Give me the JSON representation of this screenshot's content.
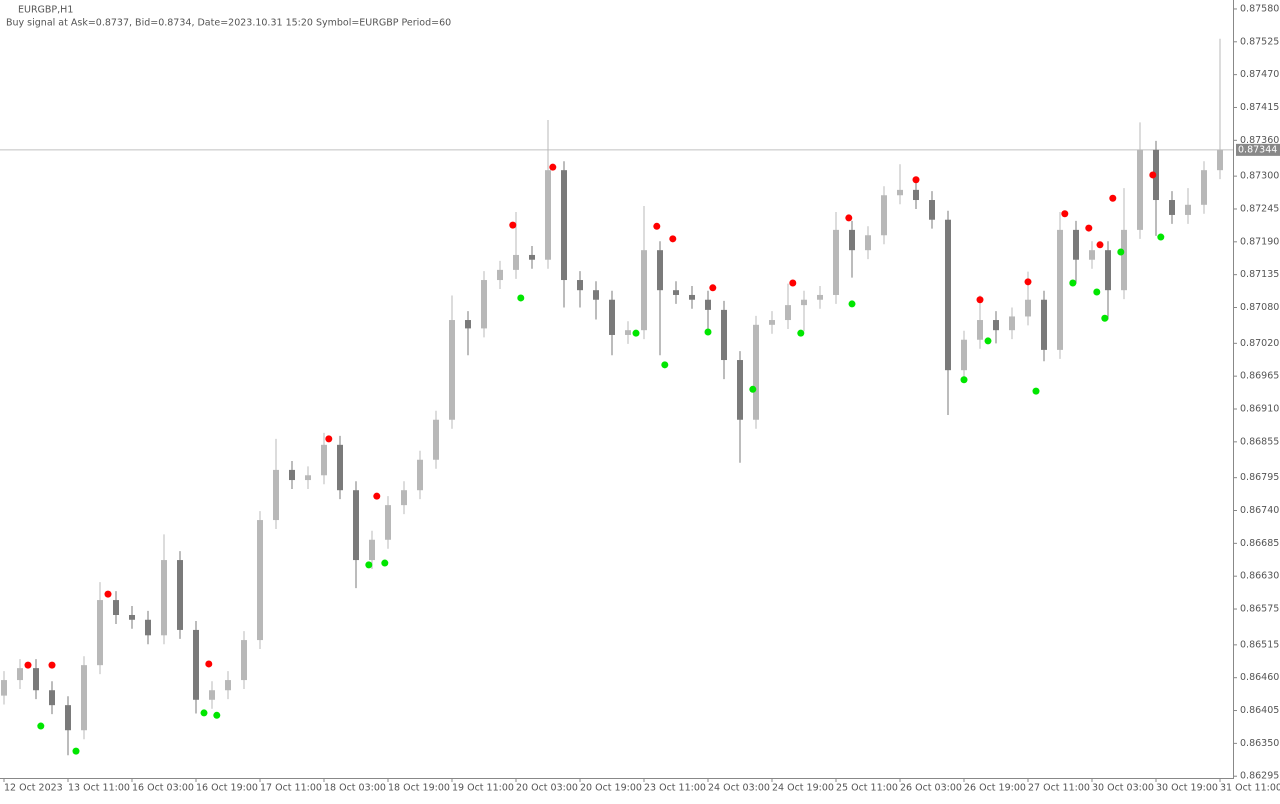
{
  "chart_data": {
    "type": "candlestick",
    "title": "EURGBP,H1",
    "subtitle": "Buy signal at Ask=0.8737, Bid=0.8734, Date=2023.10.31 15:20 Symbol=EURGBP Period=60",
    "categories": [
      "12 Oct 2023",
      null,
      null,
      null,
      "13 Oct 11:00",
      null,
      null,
      null,
      "16 Oct 03:00",
      null,
      null,
      null,
      "16 Oct 19:00",
      null,
      null,
      null,
      "17 Oct 11:00",
      null,
      null,
      null,
      "18 Oct 03:00",
      null,
      null,
      null,
      "18 Oct 19:00",
      null,
      null,
      null,
      "19 Oct 11:00",
      null,
      null,
      null,
      "20 Oct 03:00",
      null,
      null,
      null,
      "20 Oct 19:00",
      null,
      null,
      null,
      "23 Oct 11:00",
      null,
      null,
      null,
      "24 Oct 03:00",
      null,
      null,
      null,
      "24 Oct 19:00",
      null,
      null,
      null,
      "25 Oct 11:00",
      null,
      null,
      null,
      "26 Oct 03:00",
      null,
      null,
      null,
      "26 Oct 19:00",
      null,
      null,
      null,
      "27 Oct 11:00",
      null,
      null,
      null,
      "30 Oct 03:00",
      null,
      null,
      null,
      "30 Oct 19:00",
      null,
      null,
      null,
      "31 Oct 11:00"
    ],
    "open": [
      0.8643,
      0.86456,
      0.86476,
      0.86439,
      0.86414,
      0.86372,
      0.86481,
      0.8659,
      0.86565,
      0.86557,
      0.86531,
      0.86657,
      0.8654,
      0.86423,
      0.86439,
      0.86456,
      0.86523,
      0.86724,
      0.86808,
      0.86791,
      0.86799,
      0.8685,
      0.86774,
      0.86657,
      0.86691,
      0.86749,
      0.86774,
      0.86825,
      0.86892,
      0.87059,
      0.87045,
      0.87126,
      0.87143,
      0.87168,
      0.8716,
      0.8731,
      0.87126,
      0.87109,
      0.87093,
      0.87034,
      0.87042,
      0.87176,
      0.87109,
      0.87101,
      0.87093,
      0.87076,
      0.86992,
      0.86892,
      0.87051,
      0.87059,
      0.87084,
      0.87093,
      0.87101,
      0.8721,
      0.87176,
      0.87201,
      0.87268,
      0.87277,
      0.8726,
      0.87227,
      0.86975,
      0.87026,
      0.87059,
      0.87042,
      0.87065,
      0.87093,
      0.87009,
      0.8721,
      0.8716,
      0.87176,
      0.87109,
      0.8721,
      0.87344,
      0.8726,
      0.87235,
      0.87252,
      0.8731
    ],
    "high": [
      0.86471,
      0.86491,
      0.86491,
      0.86454,
      0.86429,
      0.86496,
      0.8662,
      0.86605,
      0.8658,
      0.86572,
      0.867,
      0.86672,
      0.86555,
      0.86454,
      0.86471,
      0.86538,
      0.86739,
      0.8686,
      0.86823,
      0.86814,
      0.8687,
      0.86865,
      0.86789,
      0.86706,
      0.86764,
      0.86789,
      0.8684,
      0.86907,
      0.871,
      0.87074,
      0.87141,
      0.87158,
      0.8724,
      0.87183,
      0.87394,
      0.87325,
      0.87141,
      0.87124,
      0.87108,
      0.87057,
      0.8725,
      0.87191,
      0.87124,
      0.87116,
      0.87108,
      0.87091,
      0.87007,
      0.87066,
      0.87074,
      0.8712,
      0.87108,
      0.87116,
      0.8724,
      0.87225,
      0.87216,
      0.87283,
      0.8732,
      0.87292,
      0.87275,
      0.87242,
      0.87041,
      0.871,
      0.87074,
      0.8708,
      0.8714,
      0.87108,
      0.8724,
      0.87225,
      0.87191,
      0.87191,
      0.8728,
      0.8739,
      0.87359,
      0.87275,
      0.8728,
      0.87325,
      0.8753
    ],
    "low": [
      0.86415,
      0.86441,
      0.86424,
      0.86399,
      0.8633,
      0.86357,
      0.86466,
      0.8655,
      0.86542,
      0.86516,
      0.86516,
      0.86525,
      0.864,
      0.86408,
      0.86424,
      0.86441,
      0.86508,
      0.86709,
      0.86776,
      0.86776,
      0.86784,
      0.86759,
      0.8661,
      0.86642,
      0.86676,
      0.86734,
      0.86759,
      0.8681,
      0.86877,
      0.87,
      0.8703,
      0.87111,
      0.87128,
      0.87145,
      0.87145,
      0.8708,
      0.8708,
      0.8706,
      0.87,
      0.87019,
      0.87027,
      0.87,
      0.87086,
      0.87078,
      0.8704,
      0.8696,
      0.8682,
      0.86877,
      0.87036,
      0.87044,
      0.8704,
      0.87078,
      0.87086,
      0.8713,
      0.87161,
      0.87186,
      0.87253,
      0.87245,
      0.87212,
      0.869,
      0.8696,
      0.87011,
      0.8702,
      0.87027,
      0.8705,
      0.8699,
      0.86994,
      0.8712,
      0.87145,
      0.8706,
      0.87094,
      0.87195,
      0.872,
      0.8722,
      0.8722,
      0.87237,
      0.87295
    ],
    "close": [
      0.86456,
      0.86476,
      0.86439,
      0.86414,
      0.86372,
      0.86481,
      0.8659,
      0.86565,
      0.86557,
      0.86531,
      0.86657,
      0.8654,
      0.86423,
      0.86439,
      0.86456,
      0.86523,
      0.86724,
      0.86808,
      0.86791,
      0.86799,
      0.8685,
      0.86774,
      0.86657,
      0.86691,
      0.86749,
      0.86774,
      0.86825,
      0.86892,
      0.87059,
      0.87045,
      0.87126,
      0.87143,
      0.87168,
      0.8716,
      0.8731,
      0.87126,
      0.87109,
      0.87093,
      0.87034,
      0.87042,
      0.87176,
      0.87109,
      0.87101,
      0.87093,
      0.87076,
      0.86992,
      0.86892,
      0.87051,
      0.87059,
      0.87084,
      0.87093,
      0.87101,
      0.8721,
      0.87176,
      0.87201,
      0.87268,
      0.87277,
      0.8726,
      0.87227,
      0.86975,
      0.87026,
      0.87059,
      0.87042,
      0.87065,
      0.87093,
      0.87009,
      0.8721,
      0.8716,
      0.87176,
      0.87109,
      0.8721,
      0.87344,
      0.8726,
      0.87235,
      0.87252,
      0.8731,
      0.87344
    ],
    "up_color": "#b8b8b8",
    "down_color": "#7a7a7a",
    "sell_signals": {
      "color": "#ff0000",
      "x": [
        1.5,
        3.0,
        6.5,
        12.8,
        20.3,
        23.3,
        31.8,
        34.3,
        40.8,
        41.8,
        44.3,
        49.3,
        52.8,
        57.0,
        61.0,
        64.0,
        66.3,
        67.8,
        68.5,
        69.3,
        71.8
      ],
      "values": [
        0.86481,
        0.86481,
        0.866,
        0.86483,
        0.8686,
        0.86764,
        0.87218,
        0.87315,
        0.87216,
        0.87195,
        0.87113,
        0.87121,
        0.8723,
        0.87294,
        0.87093,
        0.87123,
        0.87237,
        0.87213,
        0.87185,
        0.87263,
        0.87302
      ]
    },
    "buy_signals": {
      "color": "#00e600",
      "x": [
        2.3,
        4.5,
        12.5,
        13.3,
        22.8,
        23.8,
        32.3,
        39.5,
        41.3,
        44.0,
        46.8,
        49.8,
        53.0,
        60.0,
        61.5,
        64.5,
        66.8,
        68.3,
        68.8,
        69.8,
        72.3
      ],
      "values": [
        0.86379,
        0.86337,
        0.86401,
        0.86397,
        0.86649,
        0.86652,
        0.87096,
        0.87037,
        0.86984,
        0.87039,
        0.86943,
        0.87037,
        0.87086,
        0.86959,
        0.87024,
        0.8694,
        0.87121,
        0.87106,
        0.87062,
        0.87173,
        0.87198
      ]
    },
    "bid_line": 0.87344,
    "bid_color": "#c0c0c0",
    "ylim": [
      0.86292,
      0.87595
    ],
    "yticks": [
      {
        "value": 0.8758,
        "label": "0.87580"
      },
      0.87525,
      {
        "value": 0.8747,
        "label": "0.87470"
      },
      0.87415,
      {
        "value": 0.8736,
        "label": "0.87360"
      },
      {
        "value": 0.873,
        "label": "0.87300"
      },
      0.87245,
      {
        "value": 0.8719,
        "label": "0.87190"
      },
      0.87135,
      {
        "value": 0.8708,
        "label": "0.87080"
      },
      {
        "value": 0.8702,
        "label": "0.87020"
      },
      0.86965,
      {
        "value": 0.8691,
        "label": "0.86910"
      },
      0.86855,
      0.86795,
      {
        "value": 0.8674,
        "label": "0.86740"
      },
      0.86685,
      {
        "value": 0.8663,
        "label": "0.86630"
      },
      0.86575,
      0.86515,
      {
        "value": 0.8646,
        "label": "0.86460"
      },
      0.86405,
      {
        "value": 0.8635,
        "label": "0.86350"
      },
      0.86295
    ]
  }
}
